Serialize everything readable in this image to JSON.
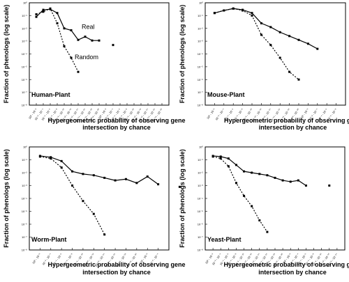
{
  "chart_data": [
    {
      "type": "line",
      "panel_label": "Human-Plant",
      "ylabel": "Fraction of phenologs (log scale)",
      "xlabel_line1": "Hypergeometric probability of observing gene",
      "xlabel_line2": "intersection by chance",
      "y_log_scale": true,
      "ylim_exponent": [
        -8,
        0
      ],
      "y_tick_labels": [
        "10⁰",
        "10⁻¹",
        "10⁻²",
        "10⁻³",
        "10⁻⁴",
        "10⁻⁵",
        "10⁻⁶",
        "10⁻⁷",
        "10⁻⁸"
      ],
      "x_tick_labels": [
        "10⁰ - 10⁻²",
        "10⁻² - 10⁻⁴",
        "10⁻⁴ - 10⁻⁶",
        "10⁻⁶ - 10⁻⁸",
        "10⁻⁸ - 10⁻¹⁰",
        "10⁻¹⁰ - 10⁻¹²",
        "10⁻¹² - 10⁻¹⁴",
        "10⁻¹⁴ - 10⁻¹⁶",
        "10⁻¹⁶ - 10⁻¹⁸",
        "10⁻¹⁸ - 10⁻²⁰"
      ],
      "x_tick_count": 19,
      "series_labels": [
        {
          "series": 0,
          "text": "Real",
          "at_index": 6
        },
        {
          "series": 1,
          "text": "Random",
          "at_index": 5
        }
      ],
      "series": [
        {
          "style": "solid",
          "values": [
            -1.1,
            -0.55,
            -0.5,
            -0.8,
            -2.0,
            -2.15,
            -2.9,
            -2.65,
            -2.95,
            -2.95,
            null,
            -3.3
          ]
        },
        {
          "style": "dotted",
          "values": [
            -0.9,
            -0.7,
            -0.45,
            -1.6,
            -3.4,
            -4.3,
            -5.4
          ]
        }
      ]
    },
    {
      "type": "line",
      "panel_label": "Mouse-Plant",
      "ylabel": "Fraction of phenologs (log scale)",
      "xlabel_line1": "Hypergeometric probability of observing gene",
      "xlabel_line2": "intersection by chance",
      "y_log_scale": true,
      "ylim_exponent": [
        -8,
        0
      ],
      "y_tick_labels": [
        "10⁰",
        "10⁻¹",
        "10⁻²",
        "10⁻³",
        "10⁻⁴",
        "10⁻⁵",
        "10⁻⁶",
        "10⁻⁷",
        "10⁻⁸"
      ],
      "x_tick_labels": [
        "10⁰ - 10⁻²",
        "10⁻² - 10⁻⁴",
        "10⁻⁴ - 10⁻⁶",
        "10⁻⁶ - 10⁻⁸",
        "10⁻⁸ - 10⁻¹⁰",
        "10⁻¹⁰ - 10⁻¹²",
        "10⁻¹² - 10⁻¹⁴",
        "10⁻¹⁴ - 10⁻¹⁶",
        "10⁻¹⁶ - 10⁻¹⁸",
        "10⁻¹⁸ - 10⁻²⁰"
      ],
      "x_tick_count": 14,
      "series_labels": [],
      "series": [
        {
          "style": "solid",
          "values": [
            -0.8,
            -0.6,
            -0.45,
            -0.55,
            -0.8,
            -1.6,
            -1.9,
            -2.3,
            -2.6,
            -2.9,
            -3.2,
            -3.6
          ]
        },
        {
          "style": "dotted",
          "values": [
            -0.8,
            -0.6,
            -0.45,
            -0.6,
            -1.0,
            -2.5,
            -3.3,
            -4.3,
            -5.4,
            -6.0
          ]
        }
      ]
    },
    {
      "type": "line",
      "panel_label": "Worm-Plant",
      "ylabel": "Fraction of phenologs (log scale)",
      "xlabel_line1": "Hypergeometric probability of observing gene",
      "xlabel_line2": "intersection by chance",
      "y_log_scale": true,
      "ylim_exponent": [
        -8,
        0
      ],
      "y_tick_labels": [
        "10⁰",
        "10⁻¹",
        "10⁻²",
        "10⁻³",
        "10⁻⁴",
        "10⁻⁵",
        "10⁻⁶",
        "10⁻⁷",
        "10⁻⁸"
      ],
      "x_tick_labels": [
        "10⁰ - 10⁻²",
        "10⁻² - 10⁻⁴",
        "10⁻⁴ - 10⁻⁶",
        "10⁻⁶ - 10⁻⁸",
        "10⁻⁸ - 10⁻¹⁰",
        "10⁻¹⁰ - 10⁻¹²",
        "10⁻¹² - 10⁻¹⁴",
        "10⁻¹⁴ - 10⁻¹⁶",
        "10⁻¹⁶ - 10⁻¹⁸",
        "10⁻¹⁸ - 10⁻²⁰"
      ],
      "x_tick_count": 12,
      "series_labels": [],
      "series": [
        {
          "style": "solid",
          "values": [
            -0.7,
            -0.8,
            -1.1,
            -1.9,
            -2.1,
            -2.2,
            -2.4,
            -2.6,
            -2.5,
            -2.8,
            -2.3,
            -2.9,
            null,
            -3.1
          ]
        },
        {
          "style": "dotted",
          "values": [
            -0.75,
            -0.9,
            -1.6,
            -3.0,
            -4.2,
            -5.2,
            -6.8
          ]
        }
      ]
    },
    {
      "type": "line",
      "panel_label": "Yeast-Plant",
      "ylabel": "Fraction of phenologs (log scale)",
      "xlabel_line1": "Hypergeometric probability of observing gene",
      "xlabel_line2": "intersection by chance",
      "y_log_scale": true,
      "ylim_exponent": [
        -8,
        0
      ],
      "y_tick_labels": [
        "10⁰",
        "10⁻¹",
        "10⁻²",
        "10⁻³",
        "10⁻⁴",
        "10⁻⁵",
        "10⁻⁶",
        "10⁻⁷",
        "10⁻⁸"
      ],
      "x_tick_labels": [
        "10⁰ - 10⁻²",
        "10⁻² - 10⁻⁴",
        "10⁻⁴ - 10⁻⁶",
        "10⁻⁶ - 10⁻⁸",
        "10⁻⁸ - 10⁻¹⁰",
        "10⁻¹⁰ - 10⁻¹²",
        "10⁻¹² - 10⁻¹⁴",
        "10⁻¹⁴ - 10⁻¹⁶",
        "10⁻¹⁶ - 10⁻¹⁸",
        "10⁻¹⁸ - 10⁻²⁰"
      ],
      "x_tick_count": 17,
      "series_labels": [],
      "series": [
        {
          "style": "solid",
          "values": [
            -0.7,
            -0.75,
            -0.9,
            -1.4,
            -1.9,
            -2.0,
            -2.1,
            -2.2,
            -2.4,
            -2.6,
            -2.7,
            -2.6,
            -3.0,
            null,
            null,
            -3.0
          ]
        },
        {
          "style": "dotted",
          "values": [
            -0.75,
            -0.9,
            -1.5,
            -2.8,
            -3.8,
            -4.6,
            -5.7,
            -6.6
          ]
        }
      ]
    }
  ]
}
